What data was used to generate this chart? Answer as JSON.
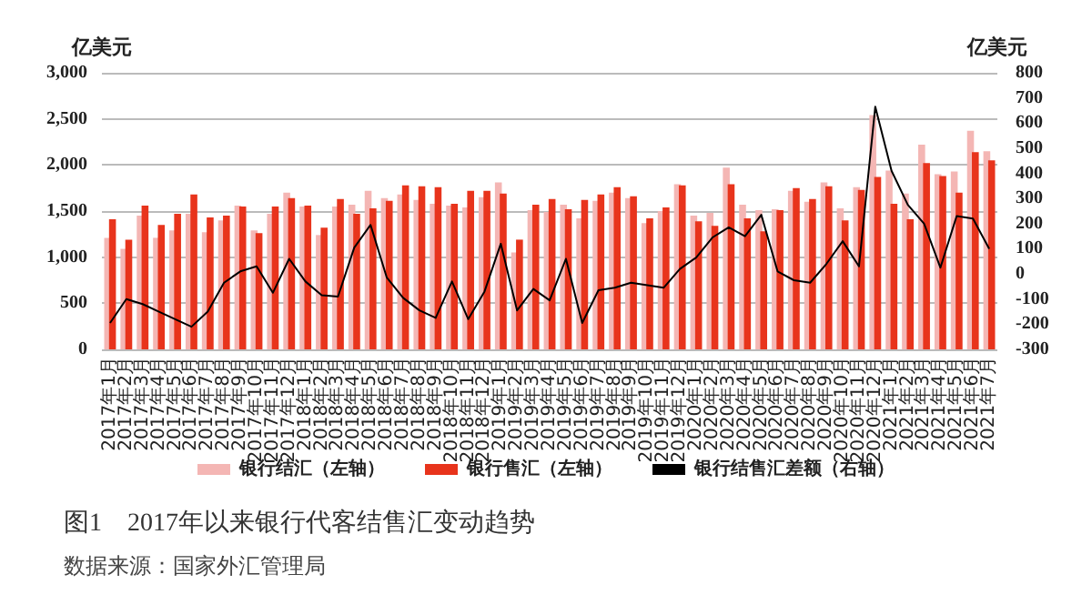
{
  "chart_data": {
    "type": "bar",
    "title": "图1　2017年以来银行代客结售汇变动趋势",
    "annotations": [
      "数据来源：国家外汇管理局"
    ],
    "ylabel": "亿美元",
    "y2label": "亿美元",
    "categories": [
      "2017年1月",
      "2017年2月",
      "2017年3月",
      "2017年4月",
      "2017年5月",
      "2017年6月",
      "2017年7月",
      "2017年8月",
      "2017年9月",
      "2017年10月",
      "2017年11月",
      "2017年12月",
      "2018年1月",
      "2018年2月",
      "2018年3月",
      "2018年4月",
      "2018年5月",
      "2018年6月",
      "2018年7月",
      "2018年8月",
      "2018年9月",
      "2018年10月",
      "2018年11月",
      "2018年12月",
      "2019年1月",
      "2019年2月",
      "2019年3月",
      "2019年4月",
      "2019年5月",
      "2019年6月",
      "2019年7月",
      "2019年8月",
      "2019年9月",
      "2019年10月",
      "2019年11月",
      "2019年12月",
      "2020年1月",
      "2020年2月",
      "2020年3月",
      "2020年4月",
      "2020年5月",
      "2020年6月",
      "2020年7月",
      "2020年8月",
      "2020年9月",
      "2020年10月",
      "2020年11月",
      "2020年12月",
      "2021年1月",
      "2021年2月",
      "2021年3月",
      "2021年4月",
      "2021年5月",
      "2021年6月",
      "2021年7月"
    ],
    "series": [
      {
        "name": "银行结汇（左轴）",
        "color": "#f4b6b4",
        "values": [
          1210,
          1090,
          1450,
          1210,
          1290,
          1470,
          1270,
          1400,
          1560,
          1290,
          1470,
          1700,
          1550,
          1240,
          1550,
          1570,
          1720,
          1640,
          1680,
          1620,
          1580,
          1560,
          1540,
          1650,
          1810,
          1050,
          1510,
          1490,
          1570,
          1420,
          1610,
          1700,
          1640,
          1370,
          1500,
          1790,
          1450,
          1480,
          1970,
          1570,
          1510,
          1520,
          1720,
          1600,
          1810,
          1530,
          1760,
          2540,
          1940,
          1690,
          2220,
          1900,
          1930,
          2370,
          2150
        ]
      },
      {
        "name": "银行售汇（左轴）",
        "color": "#e8341c",
        "values": [
          1410,
          1190,
          1560,
          1350,
          1470,
          1680,
          1430,
          1450,
          1550,
          1260,
          1550,
          1640,
          1560,
          1320,
          1630,
          1470,
          1530,
          1610,
          1780,
          1770,
          1760,
          1580,
          1720,
          1720,
          1690,
          1190,
          1570,
          1630,
          1520,
          1620,
          1680,
          1760,
          1660,
          1420,
          1540,
          1780,
          1390,
          1340,
          1790,
          1420,
          1280,
          1510,
          1750,
          1630,
          1770,
          1400,
          1730,
          1870,
          1580,
          1410,
          2020,
          1880,
          1700,
          2140,
          2050
        ]
      },
      {
        "name": "银行结售汇差额（右轴）",
        "type": "line",
        "axis": "y2",
        "color": "#000000",
        "values": [
          -195,
          -100,
          -120,
          -150,
          -180,
          -210,
          -150,
          -35,
          10,
          30,
          -75,
          60,
          -30,
          -85,
          -90,
          105,
          195,
          -15,
          -95,
          -145,
          -175,
          -30,
          -180,
          -70,
          120,
          -145,
          -60,
          -105,
          60,
          -195,
          -65,
          -55,
          -35,
          -45,
          -55,
          20,
          65,
          145,
          185,
          150,
          235,
          10,
          -25,
          -35,
          40,
          130,
          30,
          665,
          410,
          275,
          200,
          25,
          230,
          220,
          100
        ]
      }
    ],
    "ylim": [
      0,
      3000
    ],
    "yticks": [
      {
        "value": 0,
        "label": "0"
      },
      {
        "value": 500,
        "label": "500"
      },
      {
        "value": 1000,
        "label": "1,000"
      },
      {
        "value": 1500,
        "label": "1,500"
      },
      {
        "value": 2000,
        "label": "2,000"
      },
      {
        "value": 2500,
        "label": "2,500"
      },
      {
        "value": 3000,
        "label": "3,000"
      }
    ],
    "y2lim": [
      -300,
      800
    ],
    "y2ticks": [
      -300,
      -200,
      -100,
      0,
      100,
      200,
      300,
      400,
      500,
      600,
      700,
      800
    ],
    "grid": "y",
    "legend": "bottom",
    "marker": "none",
    "line_style": "solid"
  }
}
